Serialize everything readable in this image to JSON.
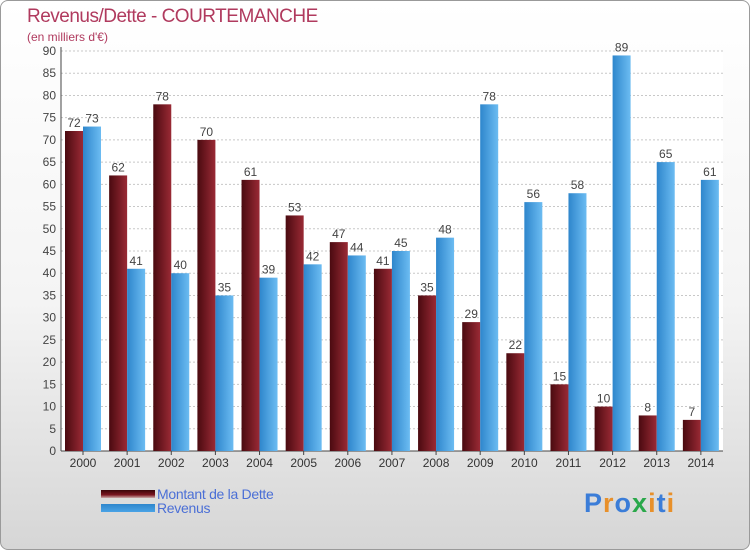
{
  "chart_data": {
    "type": "bar",
    "title": "Revenus/Dette - COURTEMANCHE",
    "subtitle": "(en milliers d'€)",
    "categories": [
      "2000",
      "2001",
      "2002",
      "2003",
      "2004",
      "2005",
      "2006",
      "2007",
      "2008",
      "2009",
      "2010",
      "2011",
      "2012",
      "2013",
      "2014"
    ],
    "series": [
      {
        "name": "Montant de la Dette",
        "color": "#7a1520",
        "values": [
          72,
          62,
          78,
          70,
          61,
          53,
          47,
          41,
          35,
          29,
          22,
          15,
          10,
          8,
          7
        ]
      },
      {
        "name": "Revenus",
        "color": "#4aa3e6",
        "values": [
          73,
          41,
          40,
          35,
          39,
          42,
          44,
          45,
          48,
          78,
          56,
          58,
          89,
          65,
          61
        ]
      }
    ],
    "ylim": [
      0,
      90
    ],
    "yticks": [
      0,
      5,
      10,
      15,
      20,
      25,
      30,
      35,
      40,
      45,
      50,
      55,
      60,
      65,
      70,
      75,
      80,
      85,
      90
    ],
    "grid": true,
    "legend_position": "bottom-left"
  },
  "logo": {
    "letters": [
      {
        "char": "P",
        "color": "#3b7dd8"
      },
      {
        "char": "r",
        "color": "#e8902a"
      },
      {
        "char": "o",
        "color": "#3b7dd8"
      },
      {
        "char": "x",
        "color": "#2aa84a"
      },
      {
        "char": "i",
        "color": "#e8902a"
      },
      {
        "char": "t",
        "color": "#3b7dd8"
      },
      {
        "char": "i",
        "color": "#e8902a"
      }
    ]
  }
}
